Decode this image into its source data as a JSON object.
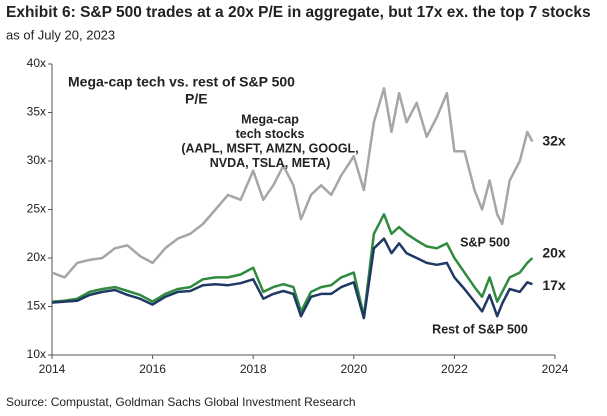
{
  "chart_data": {
    "type": "line",
    "title": "Exhibit 6: S&P 500 trades at a 20x P/E in aggregate, but 17x ex. the top 7 stocks",
    "subtitle": "as of July 20, 2023",
    "inner_title": "Mega-cap tech vs. rest of S&P 500",
    "inner_subtitle": "P/E",
    "source": "Source: Compustat, Goldman Sachs Global Investment Research",
    "x": [
      2014.0,
      2014.25,
      2014.5,
      2014.75,
      2015.0,
      2015.25,
      2015.5,
      2015.75,
      2016.0,
      2016.25,
      2016.5,
      2016.75,
      2017.0,
      2017.25,
      2017.5,
      2017.75,
      2018.0,
      2018.2,
      2018.4,
      2018.6,
      2018.8,
      2018.95,
      2019.15,
      2019.35,
      2019.55,
      2019.75,
      2020.0,
      2020.2,
      2020.4,
      2020.6,
      2020.75,
      2020.9,
      2021.05,
      2021.25,
      2021.45,
      2021.65,
      2021.85,
      2022.0,
      2022.2,
      2022.4,
      2022.55,
      2022.7,
      2022.85,
      2022.95,
      2023.1,
      2023.3,
      2023.45,
      2023.55
    ],
    "series": [
      {
        "label_lines": [
          "Mega-cap",
          "tech stocks",
          "(AAPL, MSFT, AMZN, GOOGL,",
          "NVDA, TSLA, META)"
        ],
        "end_label": "32x",
        "color": "#a6a6a6",
        "values": [
          18.5,
          18.0,
          19.5,
          19.8,
          20.0,
          21.0,
          21.3,
          20.2,
          19.5,
          21.0,
          22.0,
          22.5,
          23.5,
          25.0,
          26.5,
          26.0,
          29.0,
          26.0,
          27.5,
          29.5,
          27.5,
          24.0,
          26.5,
          27.5,
          26.5,
          28.5,
          30.5,
          27.0,
          34.0,
          37.5,
          33.0,
          37.0,
          34.0,
          36.0,
          32.5,
          34.5,
          37.0,
          31.0,
          31.0,
          27.0,
          25.0,
          28.0,
          24.5,
          23.5,
          28.0,
          30.0,
          33.0,
          32.0
        ]
      },
      {
        "label_lines": [
          "S&P 500"
        ],
        "end_label": "20x",
        "color": "#2e8b3e",
        "values": [
          15.5,
          15.6,
          15.8,
          16.5,
          16.8,
          17.0,
          16.6,
          16.2,
          15.5,
          16.3,
          16.8,
          17.0,
          17.8,
          18.0,
          18.0,
          18.3,
          19.0,
          16.5,
          17.0,
          17.3,
          17.0,
          14.5,
          16.5,
          17.0,
          17.2,
          18.0,
          18.5,
          14.0,
          22.5,
          24.5,
          22.5,
          23.2,
          22.5,
          21.8,
          21.2,
          21.0,
          21.5,
          20.0,
          18.5,
          17.0,
          16.0,
          18.0,
          15.5,
          16.5,
          18.0,
          18.5,
          19.5,
          20.0
        ]
      },
      {
        "label_lines": [
          "Rest of S&P 500"
        ],
        "end_label": "17x",
        "color": "#1f3864",
        "values": [
          15.4,
          15.5,
          15.6,
          16.2,
          16.5,
          16.7,
          16.2,
          15.8,
          15.2,
          16.0,
          16.5,
          16.6,
          17.2,
          17.3,
          17.2,
          17.4,
          17.8,
          15.8,
          16.3,
          16.6,
          16.3,
          14.0,
          16.0,
          16.3,
          16.3,
          17.0,
          17.5,
          13.8,
          21.0,
          22.0,
          20.5,
          21.5,
          20.5,
          20.0,
          19.5,
          19.3,
          19.5,
          18.0,
          16.8,
          15.5,
          14.5,
          16.2,
          14.0,
          15.3,
          16.8,
          16.5,
          17.5,
          17.3
        ]
      }
    ],
    "xlim": [
      2014,
      2024
    ],
    "xticks": [
      2014,
      2016,
      2018,
      2020,
      2022,
      2024
    ],
    "ylim": [
      10,
      40
    ],
    "yticks": [
      {
        "value": 10,
        "label": "10x"
      },
      {
        "value": 15,
        "label": "15x"
      },
      {
        "value": 20,
        "label": "20x"
      },
      {
        "value": 25,
        "label": "25x"
      },
      {
        "value": 30,
        "label": "30x"
      },
      {
        "value": 35,
        "label": "35x"
      },
      {
        "value": 40,
        "label": "40x"
      }
    ],
    "grid": false
  }
}
